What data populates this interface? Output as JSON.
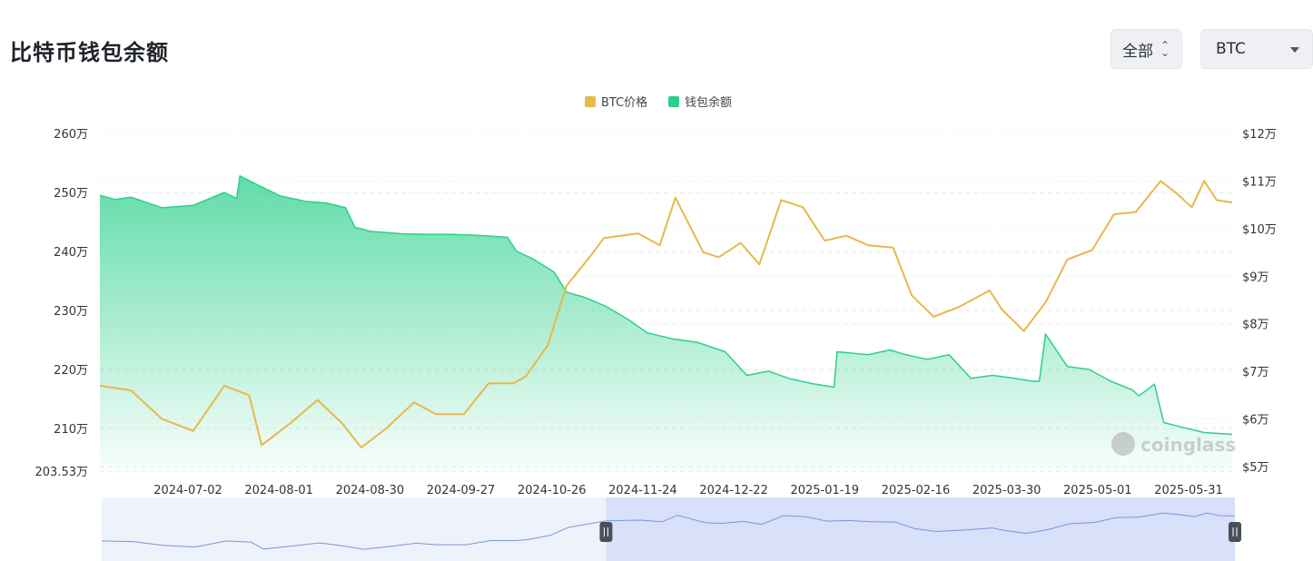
{
  "header": {
    "title": "比特币钱包余额"
  },
  "controls": {
    "range_label": "全部",
    "coin_label": "BTC"
  },
  "watermark": "coinglass",
  "colors": {
    "price": "#e6b94a",
    "balance": "#2bd08c",
    "navigator": "#7b98d4"
  },
  "chart_data": {
    "type": "line",
    "legend_position": "top-center",
    "title": "",
    "x_labels": [
      "2024-07-02",
      "2024-08-01",
      "2024-08-30",
      "2024-09-27",
      "2024-10-26",
      "2024-11-24",
      "2024-12-22",
      "2025-01-19",
      "2025-02-16",
      "2025-03-30",
      "2025-05-01",
      "2025-05-31"
    ],
    "y_left": {
      "ticks": [
        "260万",
        "250万",
        "240万",
        "230万",
        "220万",
        "210万"
      ],
      "min_label": "203.53万",
      "range": [
        2035300,
        2600000
      ]
    },
    "y_right": {
      "ticks": [
        "$12万",
        "$11万",
        "$10万",
        "$9万",
        "$8万",
        "$7万",
        "$6万",
        "$5万"
      ],
      "range": [
        50000,
        120000
      ]
    },
    "grid": true,
    "series": [
      {
        "name": "BTC价格",
        "axis": "right",
        "area": false,
        "x": [
          "2024-06-15",
          "2024-06-25",
          "2024-07-05",
          "2024-07-15",
          "2024-07-25",
          "2024-08-02",
          "2024-08-06",
          "2024-08-15",
          "2024-08-24",
          "2024-09-01",
          "2024-09-07",
          "2024-09-15",
          "2024-09-24",
          "2024-10-01",
          "2024-10-10",
          "2024-10-18",
          "2024-10-26",
          "2024-10-30",
          "2024-11-06",
          "2024-11-12",
          "2024-11-20",
          "2024-11-24",
          "2024-12-05",
          "2024-12-12",
          "2024-12-17",
          "2024-12-26",
          "2024-12-31",
          "2025-01-07",
          "2025-01-13",
          "2025-01-20",
          "2025-01-27",
          "2025-02-03",
          "2025-02-10",
          "2025-02-17",
          "2025-02-25",
          "2025-03-03",
          "2025-03-10",
          "2025-03-18",
          "2025-03-28",
          "2025-04-01",
          "2025-04-08",
          "2025-04-15",
          "2025-04-22",
          "2025-04-30",
          "2025-05-07",
          "2025-05-14",
          "2025-05-22",
          "2025-05-27",
          "2025-06-01",
          "2025-06-05",
          "2025-06-09",
          "2025-06-14"
        ],
        "values": [
          67000,
          66000,
          60000,
          57500,
          67000,
          65000,
          54500,
          59000,
          64000,
          59000,
          54000,
          58000,
          63500,
          61000,
          61000,
          67500,
          67500,
          69000,
          75500,
          88000,
          94500,
          98000,
          99000,
          96500,
          106500,
          95000,
          94000,
          97000,
          92500,
          106000,
          104500,
          97500,
          98500,
          96500,
          96000,
          86000,
          81500,
          83500,
          87000,
          83000,
          78500,
          84500,
          93500,
          95500,
          103000,
          103500,
          110000,
          107500,
          104500,
          110000,
          106000,
          105500
        ]
      },
      {
        "name": "钱包余额",
        "axis": "left",
        "area": true,
        "x": [
          "2024-06-15",
          "2024-06-20",
          "2024-06-25",
          "2024-07-05",
          "2024-07-15",
          "2024-07-25",
          "2024-07-29",
          "2024-07-30",
          "2024-08-05",
          "2024-08-12",
          "2024-08-20",
          "2024-08-27",
          "2024-09-02",
          "2024-09-05",
          "2024-09-10",
          "2024-09-20",
          "2024-09-28",
          "2024-10-06",
          "2024-10-15",
          "2024-10-24",
          "2024-10-27",
          "2024-11-01",
          "2024-11-08",
          "2024-11-12",
          "2024-11-18",
          "2024-11-25",
          "2024-12-02",
          "2024-12-08",
          "2024-12-16",
          "2024-12-24",
          "2025-01-02",
          "2025-01-09",
          "2025-01-16",
          "2025-01-23",
          "2025-01-30",
          "2025-02-06",
          "2025-02-07",
          "2025-02-17",
          "2025-02-24",
          "2025-03-01",
          "2025-03-08",
          "2025-03-15",
          "2025-03-22",
          "2025-03-29",
          "2025-04-05",
          "2025-04-11",
          "2025-04-13",
          "2025-04-15",
          "2025-04-22",
          "2025-04-29",
          "2025-05-06",
          "2025-05-13",
          "2025-05-15",
          "2025-05-20",
          "2025-05-23",
          "2025-05-29",
          "2025-06-05",
          "2025-06-14"
        ],
        "values": [
          2495000,
          2488000,
          2492000,
          2474000,
          2478000,
          2500000,
          2490000,
          2528000,
          2512000,
          2494000,
          2485000,
          2482000,
          2474000,
          2441000,
          2434000,
          2430000,
          2429000,
          2429000,
          2427000,
          2424000,
          2400000,
          2388000,
          2365000,
          2331000,
          2322000,
          2306000,
          2284000,
          2262000,
          2252000,
          2246000,
          2230000,
          2190000,
          2197000,
          2184000,
          2176000,
          2170000,
          2230000,
          2225000,
          2233000,
          2225000,
          2217000,
          2225000,
          2185000,
          2190000,
          2185000,
          2180000,
          2180000,
          2260000,
          2205000,
          2200000,
          2180000,
          2165000,
          2155000,
          2175000,
          2110000,
          2102000,
          2093000,
          2090000
        ]
      }
    ],
    "navigator": {
      "window_start": "2024-11-24",
      "window_end": "2025-06-14"
    }
  }
}
